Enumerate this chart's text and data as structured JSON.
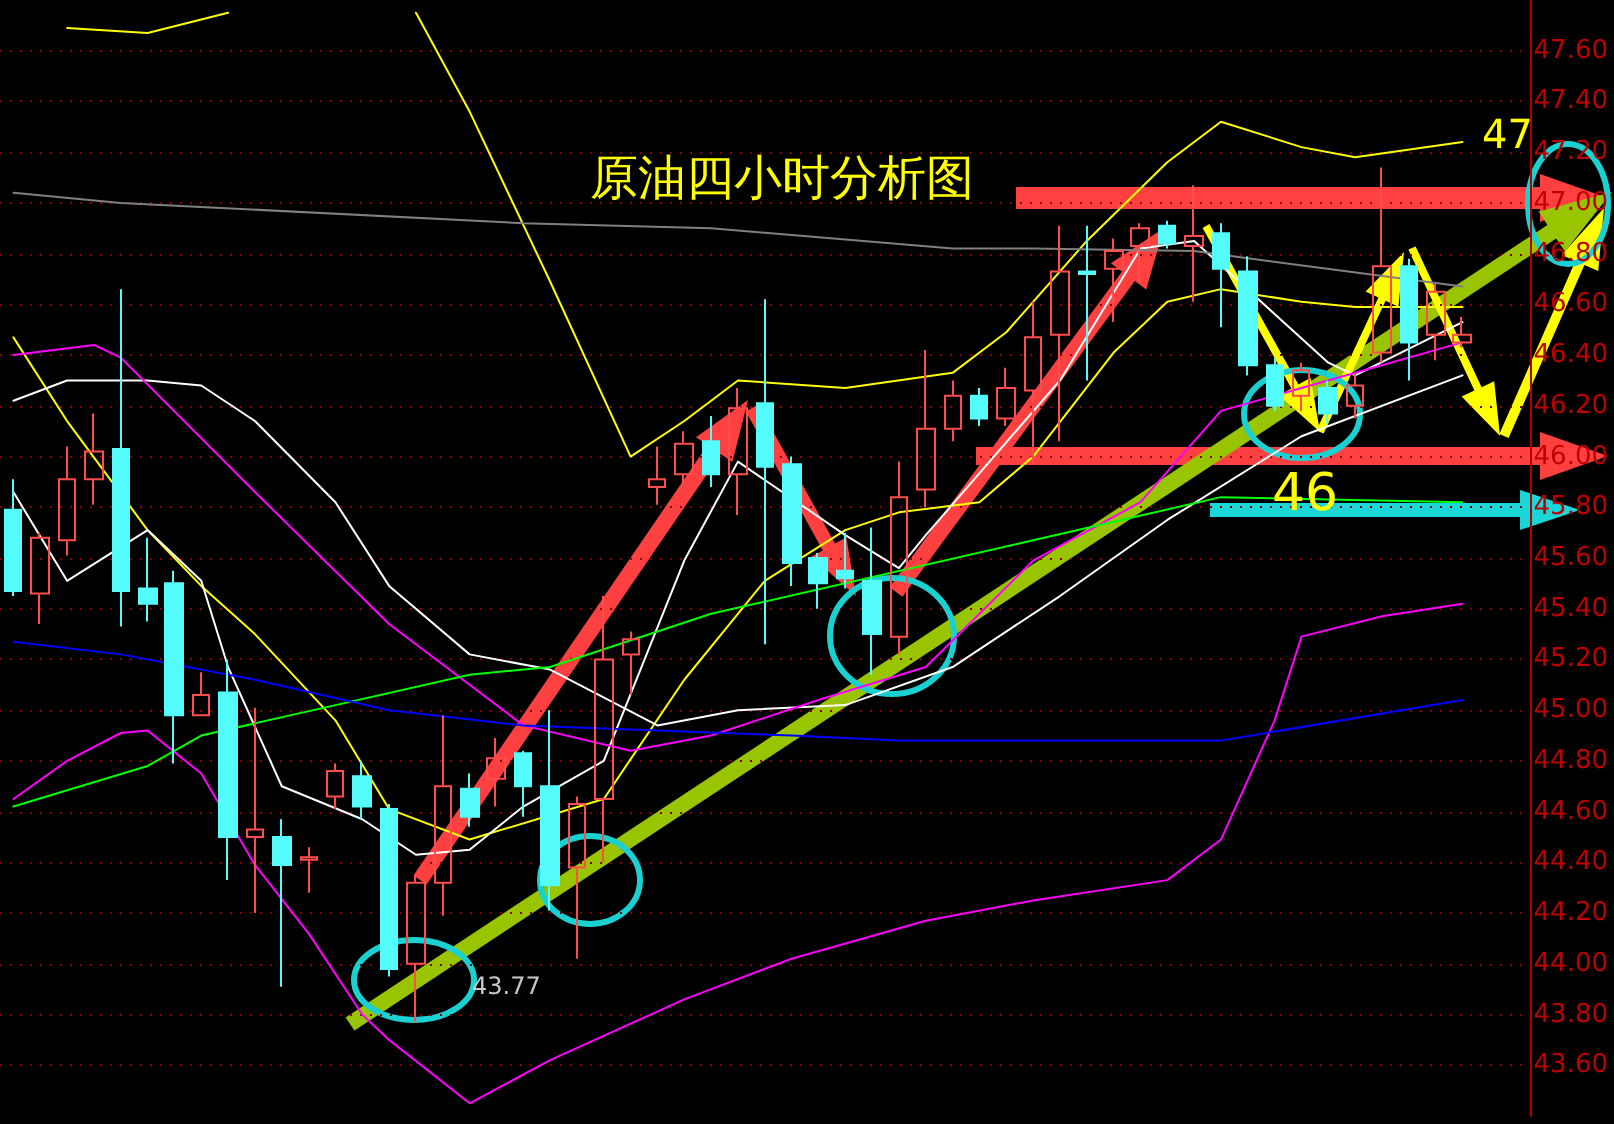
{
  "chart_data": {
    "type": "candlestick",
    "title": "原油四小时分析图",
    "annotations": [
      "47",
      "46",
      "43.77"
    ],
    "categories": [
      null,
      null,
      null,
      null,
      null,
      null,
      null,
      null,
      null,
      null,
      null,
      null,
      null,
      null,
      null,
      null,
      null,
      null,
      null,
      null,
      null,
      null,
      null,
      null,
      null,
      null,
      null,
      null,
      null,
      null,
      null,
      null,
      null,
      null,
      null,
      null,
      null,
      null,
      null,
      null,
      null,
      null,
      null,
      null,
      null,
      null,
      null,
      null,
      null,
      null,
      null,
      null,
      null,
      null,
      null,
      null,
      null
    ],
    "ohlc": [
      [
        45.79,
        45.91,
        45.45,
        45.47
      ],
      [
        45.46,
        45.7,
        45.34,
        45.68
      ],
      [
        45.67,
        46.04,
        45.61,
        45.91
      ],
      [
        45.91,
        46.17,
        45.81,
        46.02
      ],
      [
        46.03,
        46.66,
        45.33,
        45.47
      ],
      [
        45.48,
        45.68,
        45.35,
        45.42
      ],
      [
        45.5,
        45.55,
        44.79,
        44.98
      ],
      [
        44.98,
        45.15,
        44.98,
        45.06
      ],
      [
        45.07,
        45.2,
        44.33,
        44.5
      ],
      [
        44.5,
        45.01,
        44.2,
        44.53
      ],
      [
        44.5,
        44.57,
        43.91,
        44.39
      ],
      [
        44.41,
        44.46,
        44.28,
        44.42
      ],
      [
        44.66,
        44.79,
        44.61,
        44.76
      ],
      [
        44.74,
        44.8,
        44.57,
        44.62
      ],
      [
        44.61,
        44.63,
        43.95,
        43.98
      ],
      [
        44.0,
        44.35,
        43.77,
        44.32
      ],
      [
        44.32,
        44.98,
        44.19,
        44.7
      ],
      [
        44.69,
        44.75,
        44.54,
        44.58
      ],
      [
        44.73,
        44.89,
        44.62,
        44.81
      ],
      [
        44.83,
        44.84,
        44.58,
        44.7
      ],
      [
        44.7,
        45.0,
        44.21,
        44.31
      ],
      [
        44.38,
        44.66,
        44.02,
        44.63
      ],
      [
        44.65,
        45.45,
        44.4,
        45.2
      ],
      [
        45.22,
        45.31,
        45.06,
        45.28
      ],
      [
        45.88,
        46.04,
        45.81,
        45.91
      ],
      [
        45.93,
        46.1,
        45.89,
        46.05
      ],
      [
        46.06,
        46.16,
        45.88,
        45.93
      ],
      [
        45.93,
        46.27,
        45.77,
        46.19
      ],
      [
        46.21,
        46.62,
        45.26,
        45.96
      ],
      [
        45.97,
        46.0,
        45.49,
        45.58
      ],
      [
        45.6,
        45.62,
        45.4,
        45.5
      ],
      [
        45.55,
        45.7,
        45.48,
        45.52
      ],
      [
        45.51,
        45.72,
        45.14,
        45.3
      ],
      [
        45.29,
        45.98,
        45.22,
        45.84
      ],
      [
        45.87,
        46.42,
        45.8,
        46.11
      ],
      [
        46.11,
        46.3,
        46.06,
        46.24
      ],
      [
        46.24,
        46.27,
        46.12,
        46.15
      ],
      [
        46.15,
        46.35,
        46.12,
        46.27
      ],
      [
        46.26,
        46.61,
        45.97,
        46.47
      ],
      [
        46.48,
        46.91,
        46.06,
        46.73
      ],
      [
        46.73,
        46.91,
        46.3,
        46.72
      ],
      [
        46.74,
        46.86,
        46.53,
        46.81
      ],
      [
        46.83,
        46.92,
        46.69,
        46.9
      ],
      [
        46.91,
        46.93,
        46.82,
        46.84
      ],
      [
        46.83,
        47.07,
        46.61,
        46.87
      ],
      [
        46.88,
        46.92,
        46.51,
        46.74
      ],
      [
        46.73,
        46.79,
        46.32,
        46.36
      ],
      [
        46.36,
        46.39,
        46.18,
        46.2
      ],
      [
        46.24,
        46.37,
        46.18,
        46.34
      ],
      [
        46.27,
        46.3,
        46.13,
        46.17
      ],
      [
        46.2,
        46.33,
        46.15,
        46.28
      ],
      [
        46.41,
        47.14,
        46.37,
        46.75
      ],
      [
        46.75,
        46.78,
        46.3,
        46.45
      ],
      [
        46.48,
        46.68,
        46.38,
        46.65
      ],
      [
        46.45,
        46.55,
        46.43,
        46.48
      ],
      null,
      null
    ],
    "colors": [
      "#54fcfc",
      "#ff4d4d",
      "#ff4d4d",
      "#ff4d4d",
      "#54fcfc",
      "#54fcfc",
      "#54fcfc",
      "#ff4d4d",
      "#54fcfc",
      "#ff4d4d",
      "#54fcfc",
      "#ff4d4d",
      "#ff4d4d",
      "#54fcfc",
      "#54fcfc",
      "#ff4d4d",
      "#ff4d4d",
      "#54fcfc",
      "#ff4d4d",
      "#54fcfc",
      "#54fcfc",
      "#ff4d4d",
      "#ff4d4d",
      "#ff4d4d",
      "#ff4d4d",
      "#ff4d4d",
      "#54fcfc",
      "#ff4d4d",
      "#54fcfc",
      "#54fcfc",
      "#54fcfc",
      "#54fcfc",
      "#54fcfc",
      "#ff4d4d",
      "#ff4d4d",
      "#ff4d4d",
      "#54fcfc",
      "#ff4d4d",
      "#ff4d4d",
      "#ff4d4d",
      "#54fcfc",
      "#ff4d4d",
      "#ff4d4d",
      "#54fcfc",
      "#ff4d4d",
      "#54fcfc",
      "#54fcfc",
      "#54fcfc",
      "#ff4d4d",
      "#54fcfc",
      "#ff4d4d",
      "#ff4d4d",
      "#54fcfc",
      "#ff4d4d",
      "#ff4d4d",
      null,
      null
    ],
    "series": [
      {
        "type": "line",
        "color": "#ffff00",
        "values": [
          null,
          null,
          47.69,
          null,
          null,
          47.67,
          null,
          null,
          47.75,
          null,
          null,
          null,
          null,
          null,
          null,
          null,
          null,
          null,
          null,
          null,
          null,
          null,
          null,
          null,
          null,
          null,
          null,
          null,
          null,
          null,
          null,
          null,
          null,
          null,
          null,
          null,
          null,
          null,
          null,
          null,
          null,
          null,
          null,
          null,
          null,
          null,
          null,
          null,
          null,
          null,
          null,
          null,
          null,
          null,
          null,
          null,
          null
        ]
      },
      {
        "type": "line",
        "color": "#ffff00",
        "values": [
          null,
          null,
          null,
          null,
          null,
          null,
          null,
          null,
          null,
          null,
          null,
          null,
          null,
          null,
          null,
          47.75,
          null,
          47.36,
          null,
          null,
          46.69,
          null,
          null,
          46.0,
          null,
          46.14,
          null,
          46.3,
          null,
          null,
          null,
          46.27,
          null,
          null,
          null,
          46.33,
          null,
          46.49,
          null,
          null,
          46.85,
          null,
          null,
          47.16,
          null,
          47.32,
          null,
          null,
          47.22,
          null,
          47.18,
          null,
          null,
          null,
          47.24,
          null,
          null
        ]
      },
      {
        "type": "line",
        "color": "#ffff00",
        "values": [
          46.47,
          null,
          46.14,
          null,
          null,
          45.71,
          null,
          45.49,
          null,
          45.3,
          null,
          null,
          44.96,
          null,
          44.61,
          null,
          null,
          44.49,
          null,
          null,
          null,
          null,
          44.65,
          null,
          null,
          45.12,
          null,
          null,
          45.51,
          null,
          null,
          45.71,
          null,
          45.78,
          null,
          null,
          45.82,
          null,
          46.0,
          null,
          null,
          46.41,
          null,
          46.61,
          null,
          46.66,
          null,
          null,
          46.61,
          null,
          46.59,
          null,
          null,
          null,
          46.59,
          null,
          null
        ]
      },
      {
        "type": "line",
        "color": "#ffffff",
        "values": [
          46.22,
          null,
          46.3,
          null,
          null,
          46.3,
          null,
          46.28,
          null,
          46.14,
          null,
          null,
          45.82,
          null,
          45.49,
          null,
          null,
          45.22,
          null,
          null,
          45.16,
          null,
          null,
          null,
          44.94,
          null,
          null,
          45.0,
          null,
          null,
          null,
          45.02,
          null,
          null,
          null,
          45.17,
          null,
          null,
          null,
          45.45,
          null,
          null,
          null,
          45.75,
          null,
          null,
          null,
          null,
          46.08,
          null,
          null,
          null,
          null,
          null,
          46.32,
          null,
          null
        ]
      },
      {
        "type": "line",
        "color": "#ffffff",
        "values": [
          45.86,
          null,
          45.51,
          null,
          null,
          45.71,
          null,
          45.51,
          45.17,
          null,
          44.7,
          null,
          null,
          44.57,
          null,
          44.43,
          null,
          44.45,
          null,
          44.62,
          null,
          null,
          44.8,
          null,
          null,
          45.59,
          null,
          45.98,
          null,
          null,
          null,
          45.69,
          null,
          45.56,
          45.69,
          null,
          null,
          null,
          null,
          46.3,
          null,
          null,
          46.82,
          null,
          46.85,
          null,
          null,
          null,
          null,
          46.37,
          46.32,
          null,
          null,
          null,
          46.53,
          null,
          null
        ]
      },
      {
        "type": "line",
        "color": "#ff00ff",
        "values": [
          46.4,
          null,
          null,
          46.44,
          46.39,
          null,
          null,
          null,
          null,
          45.86,
          null,
          null,
          null,
          null,
          45.34,
          null,
          null,
          null,
          null,
          44.94,
          null,
          null,
          null,
          44.84,
          null,
          null,
          44.9,
          null,
          null,
          null,
          45.04,
          null,
          null,
          null,
          45.17,
          null,
          null,
          null,
          45.59,
          null,
          null,
          null,
          45.82,
          null,
          null,
          46.18,
          null,
          null,
          46.27,
          null,
          null,
          null,
          null,
          null,
          46.45,
          null,
          null
        ]
      },
      {
        "type": "line",
        "color": "#ff00ff",
        "values": [
          44.65,
          null,
          44.8,
          null,
          44.91,
          44.92,
          null,
          44.75,
          null,
          44.39,
          null,
          44.12,
          null,
          43.8,
          43.7,
          null,
          null,
          43.45,
          null,
          null,
          43.62,
          null,
          null,
          null,
          null,
          43.86,
          null,
          null,
          null,
          44.02,
          null,
          null,
          null,
          null,
          44.17,
          null,
          null,
          null,
          44.25,
          null,
          null,
          null,
          null,
          44.33,
          null,
          44.49,
          null,
          44.96,
          45.29,
          null,
          null,
          45.37,
          null,
          null,
          45.42,
          null,
          null
        ]
      },
      {
        "type": "line",
        "color": "#00ff00",
        "values": [
          44.62,
          null,
          null,
          null,
          null,
          44.78,
          null,
          44.9,
          null,
          null,
          null,
          null,
          45.02,
          null,
          null,
          null,
          null,
          45.14,
          null,
          null,
          45.17,
          null,
          null,
          null,
          null,
          null,
          45.38,
          null,
          null,
          null,
          null,
          null,
          null,
          null,
          null,
          null,
          null,
          null,
          45.67,
          null,
          null,
          null,
          null,
          null,
          null,
          45.84,
          null,
          null,
          null,
          null,
          null,
          null,
          null,
          null,
          45.82,
          null,
          null
        ]
      },
      {
        "type": "line",
        "color": "#0000ff",
        "values": [
          45.27,
          null,
          null,
          null,
          45.22,
          null,
          null,
          null,
          null,
          45.12,
          null,
          null,
          null,
          null,
          45.0,
          null,
          null,
          null,
          null,
          44.94,
          null,
          null,
          null,
          null,
          null,
          null,
          null,
          null,
          null,
          44.9,
          null,
          null,
          null,
          44.88,
          null,
          null,
          null,
          null,
          null,
          44.88,
          null,
          null,
          null,
          null,
          null,
          44.88,
          null,
          null,
          null,
          null,
          null,
          null,
          null,
          null,
          45.04,
          null,
          null
        ]
      },
      {
        "type": "line",
        "color": "#808080",
        "values": [
          47.04,
          null,
          null,
          null,
          47.0,
          null,
          null,
          null,
          null,
          null,
          null,
          null,
          null,
          null,
          null,
          null,
          null,
          null,
          null,
          46.92,
          null,
          null,
          null,
          null,
          null,
          null,
          46.9,
          null,
          null,
          null,
          null,
          null,
          null,
          null,
          null,
          46.82,
          null,
          null,
          46.82,
          null,
          null,
          null,
          null,
          null,
          46.81,
          null,
          null,
          null,
          null,
          null,
          null,
          null,
          null,
          null,
          46.67,
          null,
          null
        ]
      }
    ],
    "ylim": [
      43.4,
      47.8
    ],
    "yticks": [
      {
        "value": 43.6,
        "label": "43.60"
      },
      {
        "value": 43.8,
        "label": "43.80"
      },
      {
        "value": 44,
        "label": "44.00"
      },
      {
        "value": 44.2,
        "label": "44.20"
      },
      {
        "value": 44.4,
        "label": "44.40"
      },
      {
        "value": 44.6,
        "label": "44.60"
      },
      {
        "value": 44.8,
        "label": "44.80"
      },
      {
        "value": 45,
        "label": "45.00"
      },
      {
        "value": 45.2,
        "label": "45.20"
      },
      {
        "value": 45.4,
        "label": "45.40"
      },
      {
        "value": 45.6,
        "label": "45.60"
      },
      {
        "value": 45.8,
        "label": "45.80"
      },
      {
        "value": 46,
        "label": "46.00"
      },
      {
        "value": 46.2,
        "label": "46.20"
      },
      {
        "value": 46.4,
        "label": "46.40"
      },
      {
        "value": 46.6,
        "label": "46.60"
      },
      {
        "value": 46.8,
        "label": "46.80"
      },
      {
        "value": 47,
        "label": "47.00"
      },
      {
        "value": 47.2,
        "label": "47.20"
      },
      {
        "value": 47.4,
        "label": "47.40"
      },
      {
        "value": 47.6,
        "label": "47.60"
      }
    ],
    "grid": "y",
    "tick_labels": "y",
    "marker": "none",
    "line_style": "solid"
  }
}
